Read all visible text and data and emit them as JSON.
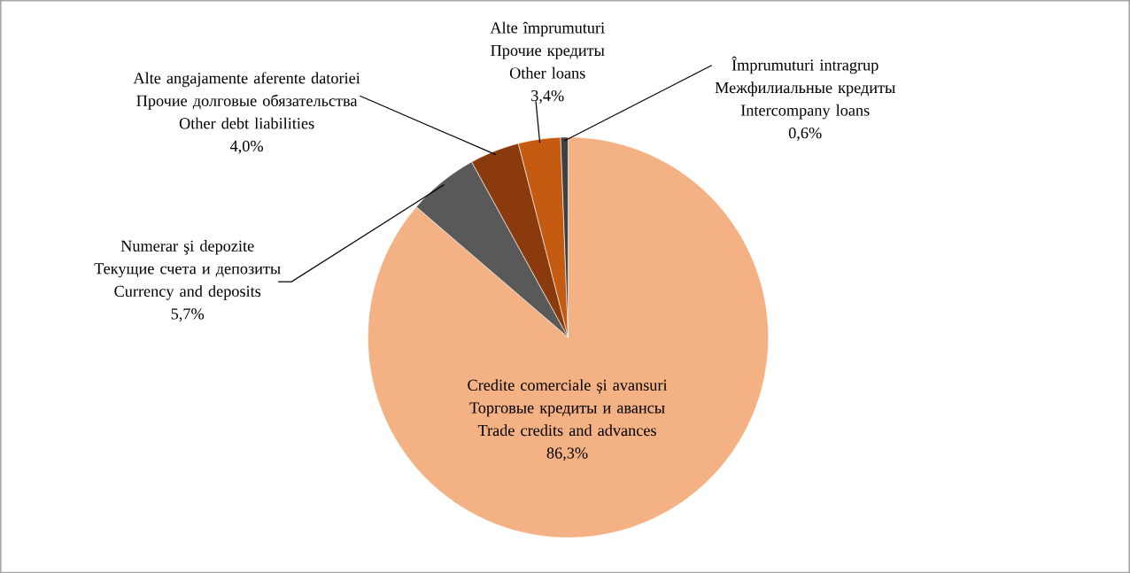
{
  "chart_data": {
    "type": "pie",
    "categories": [
      "Credite comerciale și avansuri\nТорговые кредиты и авансы\nTrade credits and advances",
      "Numerar şi depozite\nТекущие счета и депозиты\nCurrency and deposits",
      "Alte angajamente aferente datoriei\nПрочие долговые обязательства\nOther debt liabilities",
      "Alte împrumuturi\nПрочие кредиты\nOther loans",
      "Împrumuturi intragrup\nМежфилиальные кредиты\nIntercompany loans"
    ],
    "values": [
      86.3,
      5.7,
      4.0,
      3.4,
      0.6
    ],
    "value_labels": [
      "86,3%",
      "5,7%",
      "4,0%",
      "3,4%",
      "0,6%"
    ],
    "colors": [
      "#f4b183",
      "#595959",
      "#8b3a0e",
      "#c55a11",
      "#404040"
    ]
  }
}
